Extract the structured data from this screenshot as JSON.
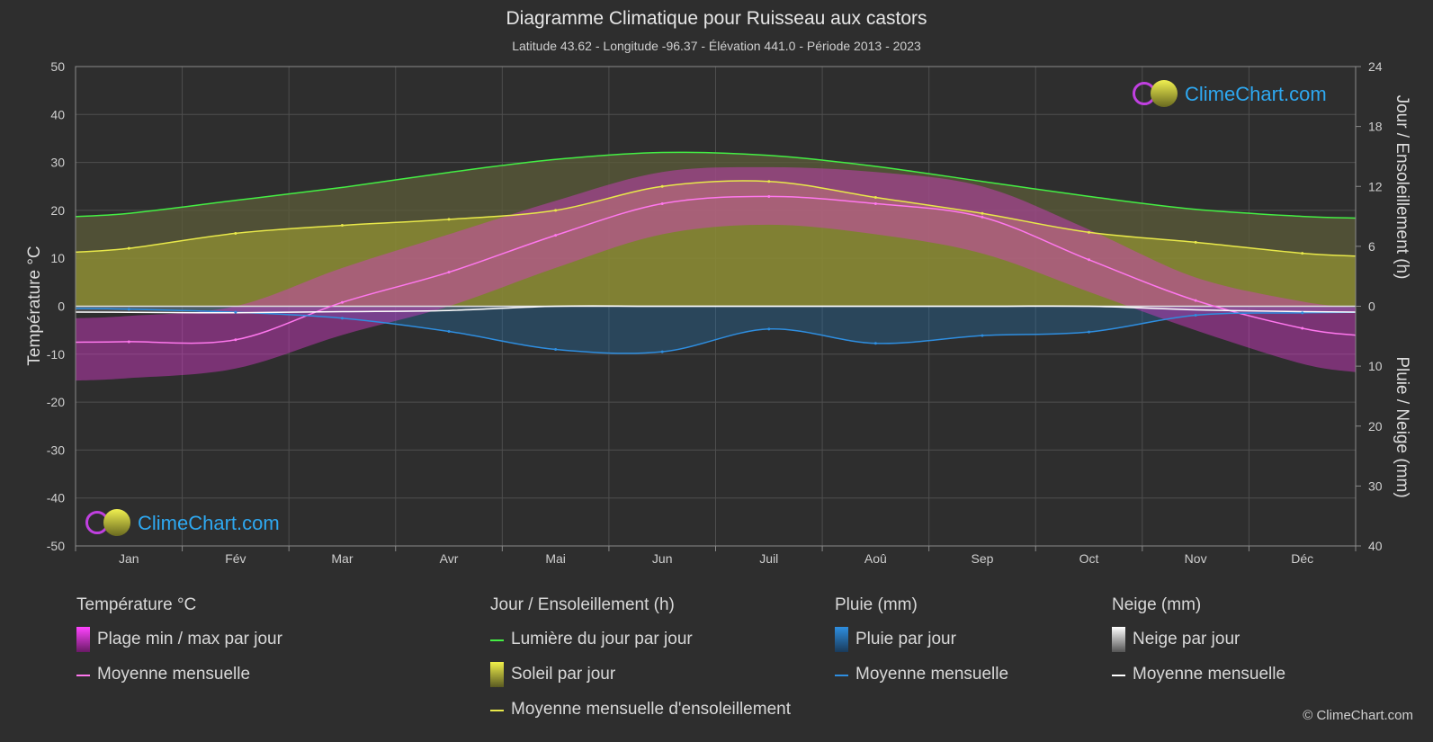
{
  "header": {
    "title": "Diagramme Climatique pour Ruisseau aux castors",
    "subtitle": "Latitude 43.62 - Longitude -96.37 - Élévation 441.0 - Période 2013 - 2023"
  },
  "brand": {
    "logo_text": "ClimeChart.com",
    "copyright": "© ClimeChart.com"
  },
  "colors": {
    "background": "#2e2e2e",
    "daylight": "#44ee44",
    "sunshine_line": "#e8e84a",
    "sunshine_fill": "#a8a832",
    "temp_line": "#ff77ee",
    "temp_fill": "#d639c9",
    "rain_line": "#2e8ee0",
    "rain_fill": "#2272b0",
    "snow_line": "#ffffff",
    "snow_fill": "#8a8a8a",
    "logo_text": "#2ea8f0"
  },
  "chart_data": {
    "type": "area",
    "title": "Diagramme Climatique pour Ruisseau aux castors",
    "months": [
      "Jan",
      "Fév",
      "Mar",
      "Avr",
      "Mai",
      "Jun",
      "Juil",
      "Aoû",
      "Sep",
      "Oct",
      "Nov",
      "Déc"
    ],
    "left_axis": {
      "label": "Température °C",
      "range": [
        -50,
        50
      ],
      "ticks": [
        50,
        40,
        30,
        20,
        10,
        0,
        -10,
        -20,
        -30,
        -40,
        -50
      ]
    },
    "right_axis_top": {
      "label": "Jour / Ensoleillement (h)",
      "range": [
        0,
        24
      ],
      "ticks": [
        24,
        18,
        12,
        6,
        0
      ]
    },
    "right_axis_bottom": {
      "label": "Pluie / Neige (mm)",
      "range": [
        0,
        40
      ],
      "ticks": [
        0,
        10,
        20,
        30,
        40
      ]
    },
    "grid": true,
    "series": [
      {
        "name": "Lumière du jour par jour",
        "axis": "hours",
        "values": [
          9.3,
          10.6,
          11.9,
          13.4,
          14.7,
          15.4,
          15.1,
          14.0,
          12.5,
          11.0,
          9.7,
          9.0
        ]
      },
      {
        "name": "Moyenne mensuelle d'ensoleillement",
        "axis": "hours",
        "values": [
          5.8,
          7.3,
          8.1,
          8.7,
          9.6,
          12.0,
          12.5,
          10.9,
          9.3,
          7.4,
          6.4,
          5.3
        ]
      },
      {
        "name": "Moyenne mensuelle",
        "kind": "temperature",
        "axis": "temp_c",
        "values": [
          -7.4,
          -7.0,
          0.8,
          7.1,
          14.8,
          21.4,
          22.9,
          21.4,
          18.6,
          9.7,
          1.2,
          -4.6
        ]
      },
      {
        "name": "Plage min / max par jour (min)",
        "axis": "temp_c",
        "values": [
          -15,
          -13,
          -6,
          0,
          8,
          15,
          17,
          15,
          11,
          3,
          -5,
          -12
        ]
      },
      {
        "name": "Plage min / max par jour (max)",
        "axis": "temp_c",
        "values": [
          -2,
          0,
          8,
          15,
          22,
          28,
          29,
          28,
          25,
          16,
          6,
          1
        ]
      },
      {
        "name": "Moyenne mensuelle",
        "kind": "rain",
        "axis": "precip_mm",
        "values": [
          0.5,
          1.0,
          2.0,
          4.2,
          7.2,
          7.6,
          3.8,
          6.2,
          4.9,
          4.3,
          1.5,
          1.1
        ]
      },
      {
        "name": "Moyenne mensuelle",
        "kind": "snow",
        "axis": "precip_mm",
        "values": [
          1.0,
          1.1,
          0.9,
          0.7,
          0.0,
          0.0,
          0.0,
          0.0,
          0.0,
          0.0,
          0.6,
          0.9
        ]
      }
    ]
  },
  "legend": {
    "temperature": {
      "title": "Température °C",
      "items": [
        "Plage min / max par jour",
        "Moyenne mensuelle"
      ]
    },
    "sun": {
      "title": "Jour / Ensoleillement (h)",
      "items": [
        "Lumière du jour par jour",
        "Soleil par jour",
        "Moyenne mensuelle d'ensoleillement"
      ]
    },
    "rain": {
      "title": "Pluie (mm)",
      "items": [
        "Pluie par jour",
        "Moyenne mensuelle"
      ]
    },
    "snow": {
      "title": "Neige (mm)",
      "items": [
        "Neige par jour",
        "Moyenne mensuelle"
      ]
    }
  }
}
